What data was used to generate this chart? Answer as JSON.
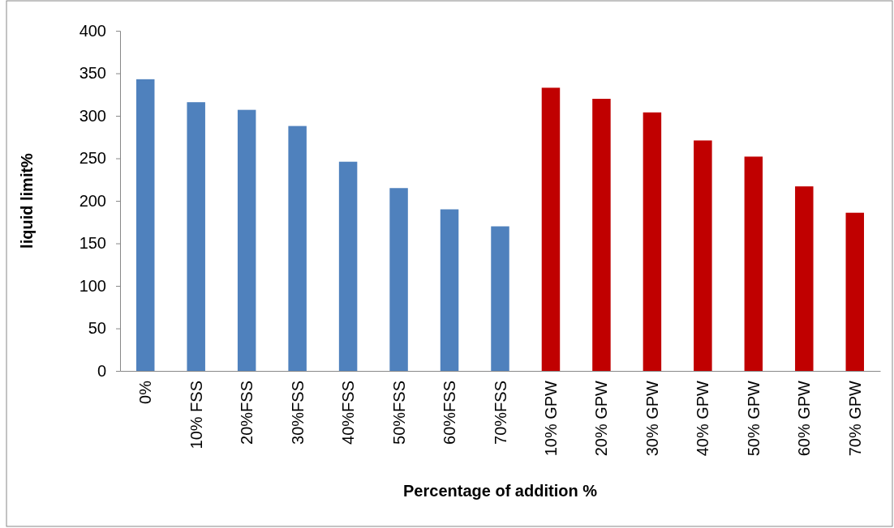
{
  "chart_data": {
    "type": "bar",
    "xlabel": "Percentage of addition %",
    "ylabel": "liquid limit%",
    "categories": [
      "0%",
      "10% FSS",
      "20%FSS",
      "30%FSS",
      "40%FSS",
      "50%FSS",
      "60%FSS",
      "70%FSS",
      "10% GPW",
      "20% GPW",
      "30% GPW",
      "40% GPW",
      "50% GPW",
      "60% GPW",
      "70% GPW"
    ],
    "values": [
      343,
      316,
      307,
      288,
      246,
      215,
      190,
      170,
      333,
      320,
      304,
      271,
      252,
      217,
      186
    ],
    "colors": [
      "#4f81bd",
      "#4f81bd",
      "#4f81bd",
      "#4f81bd",
      "#4f81bd",
      "#4f81bd",
      "#4f81bd",
      "#4f81bd",
      "#c00000",
      "#c00000",
      "#c00000",
      "#c00000",
      "#c00000",
      "#c00000",
      "#c00000"
    ],
    "ylim": [
      0,
      400
    ],
    "yticks": [
      0,
      50,
      100,
      150,
      200,
      250,
      300,
      350,
      400
    ],
    "grid": false
  }
}
